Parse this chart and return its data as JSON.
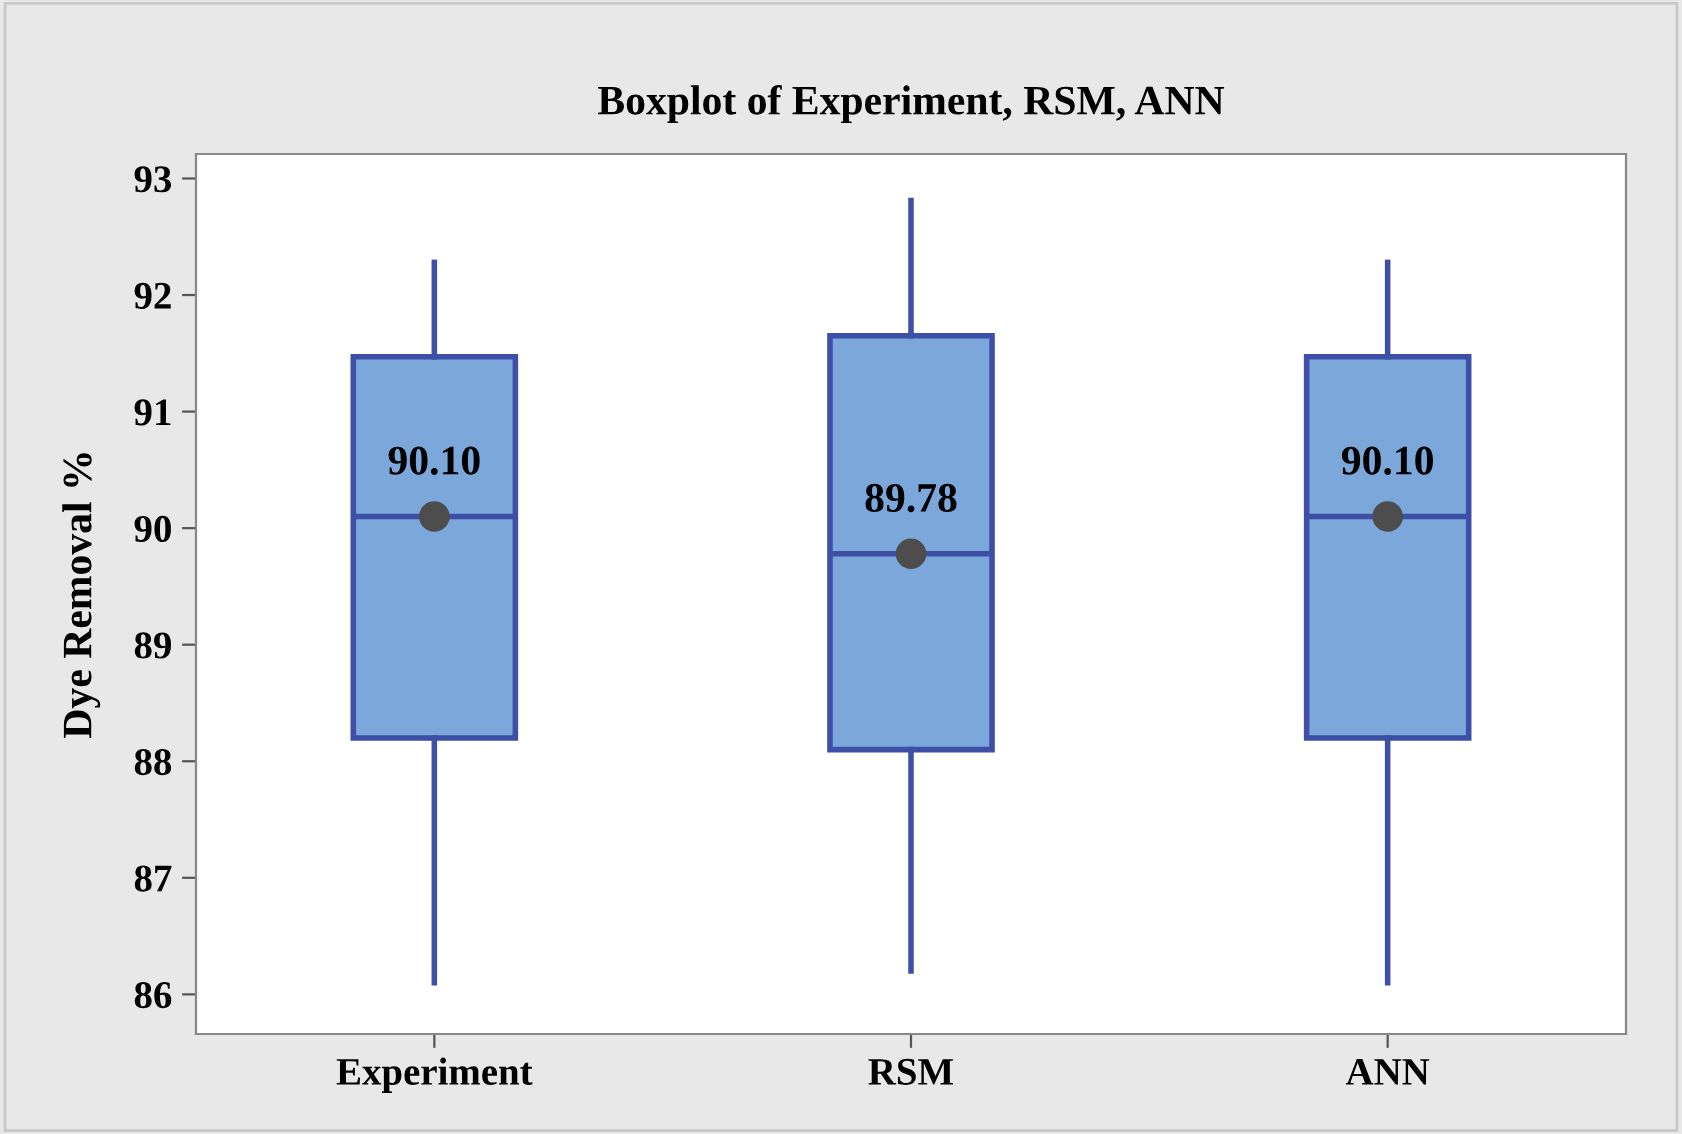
{
  "chart_data": {
    "type": "box",
    "title": "Boxplot of Experiment, RSM, ANN",
    "ylabel": "Dye Removal %",
    "categories": [
      "Experiment",
      "RSM",
      "ANN"
    ],
    "boxes": [
      {
        "low": 86.1,
        "q1": 88.2,
        "median": 90.1,
        "q3": 91.47,
        "high": 92.28,
        "mean": 90.1
      },
      {
        "low": 86.2,
        "q1": 88.1,
        "median": 89.78,
        "q3": 91.65,
        "high": 92.81,
        "mean": 89.78
      },
      {
        "low": 86.1,
        "q1": 88.2,
        "median": 90.1,
        "q3": 91.47,
        "high": 92.28,
        "mean": 90.1
      }
    ],
    "color": "#7ba7da",
    "annotations": [
      {
        "text": "90.10",
        "x": "Experiment",
        "y": 90.1
      },
      {
        "text": "89.78",
        "x": "RSM",
        "y": 89.78
      },
      {
        "text": "90.10",
        "x": "ANN",
        "y": 90.1
      }
    ],
    "ylim": [
      85.66,
      93.21
    ],
    "yticks": [
      86,
      87,
      88,
      89,
      90,
      91,
      92,
      93
    ],
    "grid": false,
    "legend": false,
    "marker": "circle"
  }
}
